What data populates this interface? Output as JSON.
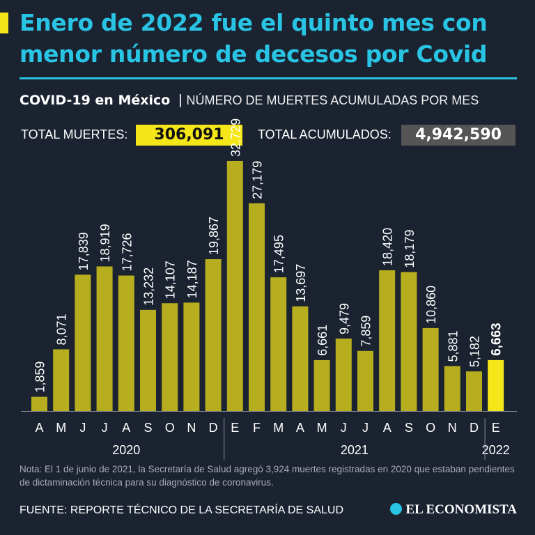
{
  "headline": "Enero de 2022 fue el quinto mes con menor número de decesos por Covid",
  "subhead": {
    "bold": "COVID-19 en México",
    "separator": "|",
    "light": "NÚMERO DE MUERTES ACUMULADAS POR MES"
  },
  "totals": {
    "deaths_label": "TOTAL MUERTES:",
    "deaths_value": "306,091",
    "cases_label": "TOTAL ACUMULADOS:",
    "cases_value": "4,942,590"
  },
  "note": "Nota: El 1 de junio de 2021, la Secretaría de Salud agregó 3,924 muertes registradas en 2020 que estaban pendientes de dictaminación técnica para su diagnóstico de coronavirus.",
  "source": "FUENTE: REPORTE TÉCNICO DE LA SECRETARÍA DE SALUD",
  "brand": "EL ECONOMISTA",
  "colors": {
    "background": "#1b2230",
    "title": "#29c4e3",
    "bar": "#b6ae1e",
    "highlight": "#f5e61a",
    "gray_box": "#555555"
  },
  "chart_data": {
    "type": "bar",
    "title": "NÚMERO DE MUERTES ACUMULADAS POR MES",
    "categories": [
      "A",
      "M",
      "J",
      "J",
      "A",
      "S",
      "O",
      "N",
      "D",
      "E",
      "F",
      "M",
      "A",
      "M",
      "J",
      "J",
      "A",
      "S",
      "O",
      "N",
      "D",
      "E"
    ],
    "values": [
      1859,
      8071,
      17839,
      18919,
      17726,
      13232,
      14107,
      14187,
      19867,
      32729,
      27179,
      17495,
      13697,
      6661,
      9479,
      7859,
      18420,
      18179,
      10860,
      5881,
      5182,
      6663
    ],
    "labels": [
      "1,859",
      "8,071",
      "17,839",
      "18,919",
      "17,726",
      "13,232",
      "14,107",
      "14,187",
      "19,867",
      "32,729",
      "27,179",
      "17,495",
      "13,697",
      "6,661",
      "9,479",
      "7,859",
      "18,420",
      "18,179",
      "10,860",
      "5,881",
      "5,182",
      "6,663"
    ],
    "highlight_index": 21,
    "years": [
      {
        "label": "2020",
        "start": 0,
        "end": 8
      },
      {
        "label": "2021",
        "start": 9,
        "end": 20
      },
      {
        "label": "2022",
        "start": 21,
        "end": 21
      }
    ],
    "ylim": [
      0,
      33000
    ],
    "xlabel": "",
    "ylabel": ""
  }
}
